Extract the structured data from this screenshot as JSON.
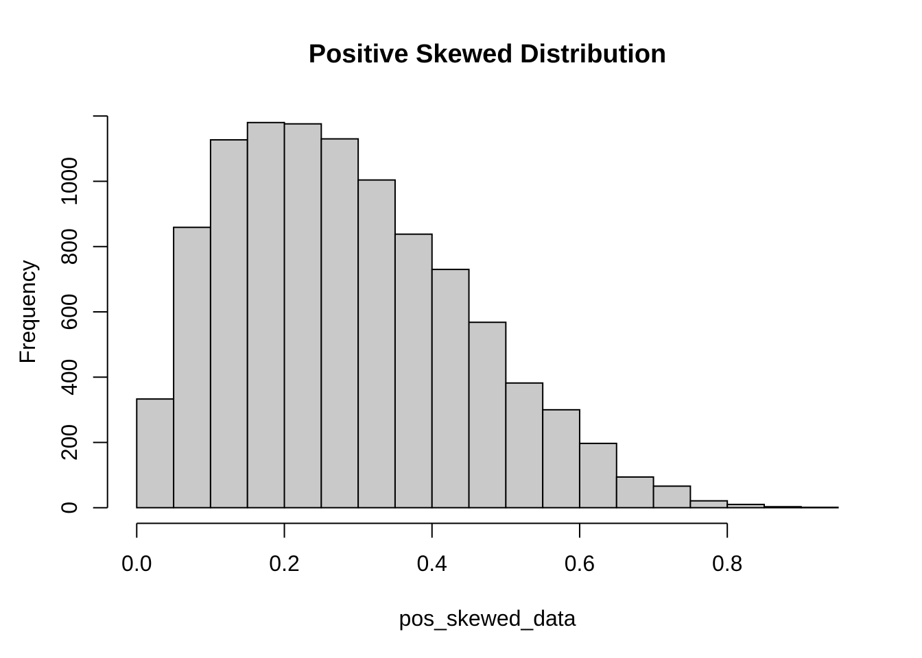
{
  "chart_data": {
    "type": "bar",
    "subtype": "histogram",
    "title": "Positive Skewed Distribution",
    "xlabel": "pos_skewed_data",
    "ylabel": "Frequency",
    "bin_start": 0.0,
    "bin_width": 0.05,
    "bins": [
      {
        "x0": 0.0,
        "x1": 0.05,
        "count": 333
      },
      {
        "x0": 0.05,
        "x1": 0.1,
        "count": 859
      },
      {
        "x0": 0.1,
        "x1": 0.15,
        "count": 1127
      },
      {
        "x0": 0.15,
        "x1": 0.2,
        "count": 1180
      },
      {
        "x0": 0.2,
        "x1": 0.25,
        "count": 1176
      },
      {
        "x0": 0.25,
        "x1": 0.3,
        "count": 1130
      },
      {
        "x0": 0.3,
        "x1": 0.35,
        "count": 1004
      },
      {
        "x0": 0.35,
        "x1": 0.4,
        "count": 838
      },
      {
        "x0": 0.4,
        "x1": 0.45,
        "count": 730
      },
      {
        "x0": 0.45,
        "x1": 0.5,
        "count": 568
      },
      {
        "x0": 0.5,
        "x1": 0.55,
        "count": 382
      },
      {
        "x0": 0.55,
        "x1": 0.6,
        "count": 300
      },
      {
        "x0": 0.6,
        "x1": 0.65,
        "count": 197
      },
      {
        "x0": 0.65,
        "x1": 0.7,
        "count": 94
      },
      {
        "x0": 0.7,
        "x1": 0.75,
        "count": 66
      },
      {
        "x0": 0.75,
        "x1": 0.8,
        "count": 21
      },
      {
        "x0": 0.8,
        "x1": 0.85,
        "count": 10
      },
      {
        "x0": 0.85,
        "x1": 0.9,
        "count": 3
      },
      {
        "x0": 0.9,
        "x1": 0.95,
        "count": 1
      }
    ],
    "x_ticks": [
      {
        "value": 0.0,
        "label": "0.0"
      },
      {
        "value": 0.2,
        "label": "0.2"
      },
      {
        "value": 0.4,
        "label": "0.4"
      },
      {
        "value": 0.6,
        "label": "0.6"
      },
      {
        "value": 0.8,
        "label": "0.8"
      }
    ],
    "y_ticks": [
      {
        "value": 0,
        "label": "0"
      },
      {
        "value": 200,
        "label": "200"
      },
      {
        "value": 400,
        "label": "400"
      },
      {
        "value": 600,
        "label": "600"
      },
      {
        "value": 800,
        "label": "800"
      },
      {
        "value": 1000,
        "label": "1000"
      },
      {
        "value": 1200,
        "label": ""
      }
    ],
    "xlim": [
      0.0,
      0.95
    ],
    "ylim": [
      0,
      1200
    ],
    "grid": false,
    "legend": "none",
    "colors": {
      "background": "#FFFFFF",
      "bar_fill": "#C9C9C9",
      "bar_stroke": "#000000",
      "axis": "#000000",
      "text": "#000000"
    }
  }
}
